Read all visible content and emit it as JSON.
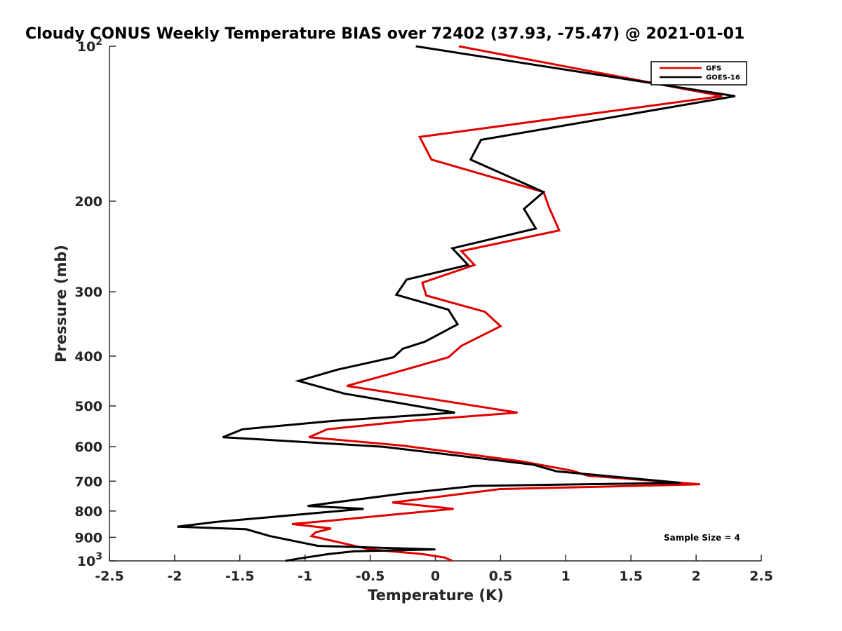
{
  "chart_data": {
    "type": "line",
    "title": "Cloudy CONUS Weekly Temperature BIAS over 72402 (37.93, -75.47) @ 2021-01-01",
    "xlabel": "Temperature (K)",
    "ylabel": "Pressure (mb)",
    "xlim": [
      -2.5,
      2.5
    ],
    "ylim": [
      100,
      1000
    ],
    "y_scale": "log",
    "y_reversed": true,
    "grid": false,
    "legend_position": "top-right",
    "x_ticks": [
      "-2.5",
      "-2",
      "-1.5",
      "-1",
      "-0.5",
      "0",
      "0.5",
      "1",
      "1.5",
      "2",
      "2.5"
    ],
    "y_ticks": [
      {
        "value": 100,
        "label": "10",
        "sup": "2"
      },
      {
        "value": 200,
        "label": "200",
        "sup": ""
      },
      {
        "value": 300,
        "label": "300",
        "sup": ""
      },
      {
        "value": 400,
        "label": "400",
        "sup": ""
      },
      {
        "value": 500,
        "label": "500",
        "sup": ""
      },
      {
        "value": 600,
        "label": "600",
        "sup": ""
      },
      {
        "value": 700,
        "label": "700",
        "sup": ""
      },
      {
        "value": 800,
        "label": "800",
        "sup": ""
      },
      {
        "value": 900,
        "label": "900",
        "sup": ""
      },
      {
        "value": 1000,
        "label": "10",
        "sup": "3"
      }
    ],
    "series": [
      {
        "name": "GFS",
        "color": "#e00000",
        "points": [
          [
            0.18,
            100
          ],
          [
            2.2,
            125
          ],
          [
            -0.12,
            150
          ],
          [
            -0.03,
            166
          ],
          [
            0.83,
            192
          ],
          [
            0.87,
            205
          ],
          [
            0.95,
            228
          ],
          [
            0.2,
            250
          ],
          [
            0.3,
            266
          ],
          [
            -0.1,
            288
          ],
          [
            -0.07,
            305
          ],
          [
            0.38,
            328
          ],
          [
            0.5,
            350
          ],
          [
            0.2,
            382
          ],
          [
            0.1,
            402
          ],
          [
            -0.33,
            432
          ],
          [
            -0.68,
            457
          ],
          [
            -0.3,
            473
          ],
          [
            0.2,
            495
          ],
          [
            0.63,
            515
          ],
          [
            -0.22,
            535
          ],
          [
            -0.83,
            555
          ],
          [
            -0.97,
            575
          ],
          [
            -0.25,
            597
          ],
          [
            0.65,
            640
          ],
          [
            1.05,
            668
          ],
          [
            1.17,
            683
          ],
          [
            2.03,
            710
          ],
          [
            0.5,
            725
          ],
          [
            -0.33,
            770
          ],
          [
            0.14,
            792
          ],
          [
            -0.8,
            835
          ],
          [
            -1.1,
            848
          ],
          [
            -0.8,
            865
          ],
          [
            -0.92,
            880
          ],
          [
            -0.95,
            895
          ],
          [
            -0.5,
            950
          ],
          [
            -0.1,
            970
          ],
          [
            0.07,
            985
          ],
          [
            0.13,
            1000
          ]
        ]
      },
      {
        "name": "GOES-16",
        "color": "#000000",
        "points": [
          [
            -0.15,
            100
          ],
          [
            2.3,
            125
          ],
          [
            0.35,
            152
          ],
          [
            0.27,
            166
          ],
          [
            0.83,
            192
          ],
          [
            0.68,
            207
          ],
          [
            0.77,
            226
          ],
          [
            0.13,
            247
          ],
          [
            0.25,
            266
          ],
          [
            -0.22,
            284
          ],
          [
            -0.3,
            304
          ],
          [
            0.1,
            325
          ],
          [
            0.17,
            347
          ],
          [
            -0.08,
            375
          ],
          [
            -0.25,
            387
          ],
          [
            -0.32,
            402
          ],
          [
            -0.75,
            425
          ],
          [
            -1.05,
            447
          ],
          [
            -0.7,
            473
          ],
          [
            0.15,
            515
          ],
          [
            -0.8,
            535
          ],
          [
            -1.48,
            555
          ],
          [
            -1.63,
            575
          ],
          [
            -0.4,
            600
          ],
          [
            0.75,
            650
          ],
          [
            0.93,
            670
          ],
          [
            1.88,
            705
          ],
          [
            0.3,
            715
          ],
          [
            -0.25,
            740
          ],
          [
            -0.98,
            782
          ],
          [
            -0.55,
            792
          ],
          [
            -1.68,
            840
          ],
          [
            -1.98,
            858
          ],
          [
            -1.45,
            868
          ],
          [
            -1.27,
            895
          ],
          [
            -0.9,
            935
          ],
          [
            0.0,
            950
          ],
          [
            -0.62,
            958
          ],
          [
            -0.82,
            970
          ],
          [
            -1.05,
            990
          ],
          [
            -1.15,
            1000
          ]
        ]
      }
    ],
    "annotation": "Sample Size = 4"
  }
}
